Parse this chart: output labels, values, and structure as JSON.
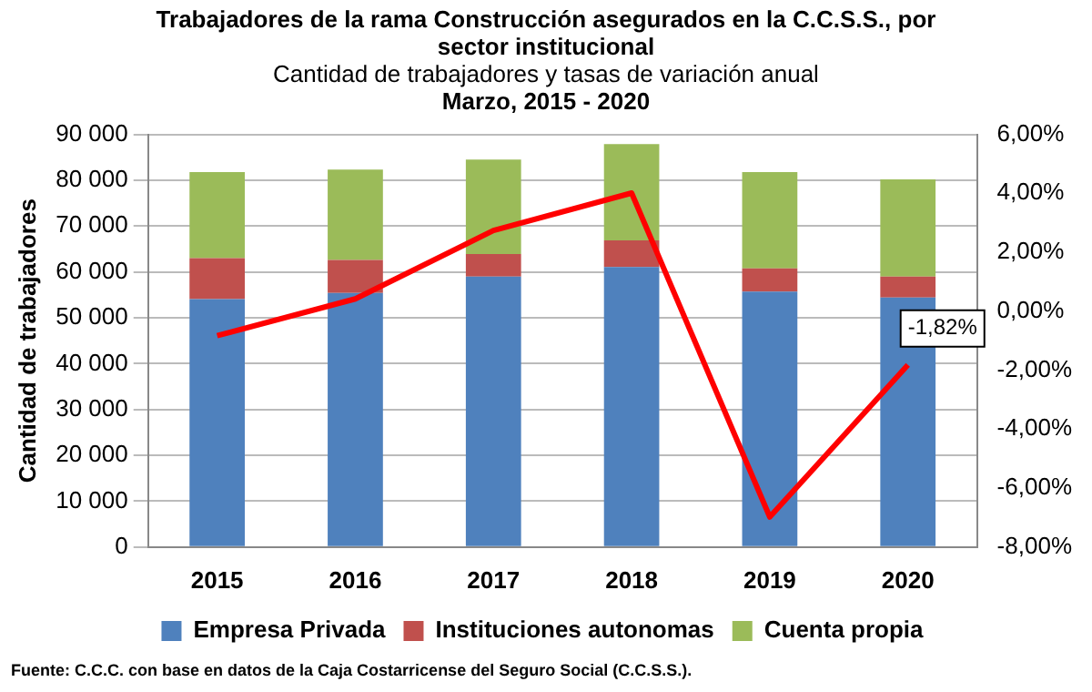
{
  "chart_data": {
    "type": "bar",
    "title": "Trabajadores de la rama Construcción asegurados en la C.C.S.S., por sector institucional",
    "subtitle": "Cantidad de trabajadores y tasas de variación anual",
    "ylabel": "Cantidad de trabajadores",
    "annotations": [
      "Marzo, 2015 - 2020",
      "Fuente: C.C.C. con base en datos de la Caja Costarricense del Seguro Social (C.C.S.S.)."
    ],
    "categories": [
      "2015",
      "2016",
      "2017",
      "2018",
      "2019",
      "2020"
    ],
    "stacked": true,
    "series": [
      {
        "name": "Empresa Privada",
        "color": "#4f81bd",
        "values": [
          54100,
          55400,
          59000,
          61100,
          55700,
          54400
        ]
      },
      {
        "name": "Instituciones autonomas",
        "color": "#c0504d",
        "values": [
          8900,
          7200,
          4900,
          5800,
          5100,
          4600
        ]
      },
      {
        "name": "Cuenta propia",
        "color": "#9bbb59",
        "values": [
          18800,
          19700,
          20600,
          21000,
          21000,
          21200
        ]
      },
      {
        "type": "line",
        "axis": "y2",
        "color": "#ff0000",
        "values": [
          -0.83,
          0.42,
          2.74,
          4.01,
          -6.98,
          -1.82
        ],
        "value_labels": [
          null,
          null,
          null,
          null,
          null,
          "-1,82%"
        ]
      }
    ],
    "ylim": [
      0,
      90000
    ],
    "yticks": [
      {
        "value": 0,
        "label": "0"
      },
      {
        "value": 10000,
        "label": "10 000"
      },
      {
        "value": 20000,
        "label": "20 000"
      },
      {
        "value": 30000,
        "label": "30 000"
      },
      {
        "value": 40000,
        "label": "40 000"
      },
      {
        "value": 50000,
        "label": "50 000"
      },
      {
        "value": 60000,
        "label": "60 000"
      },
      {
        "value": 70000,
        "label": "70 000"
      },
      {
        "value": 80000,
        "label": "80 000"
      },
      {
        "value": 90000,
        "label": "90 000"
      }
    ],
    "y2lim": [
      -8,
      6
    ],
    "y2ticks": [
      {
        "value": -8,
        "label": "-8,00%"
      },
      {
        "value": -6,
        "label": "-6,00%"
      },
      {
        "value": -4,
        "label": "-4,00%"
      },
      {
        "value": -2,
        "label": "-2,00%"
      },
      {
        "value": 0,
        "label": "0,00%"
      },
      {
        "value": 2,
        "label": "2,00%"
      },
      {
        "value": 4,
        "label": "4,00%"
      },
      {
        "value": 6,
        "label": "6,00%"
      }
    ],
    "grid": "y",
    "legend": "bottom",
    "marker": "none"
  }
}
